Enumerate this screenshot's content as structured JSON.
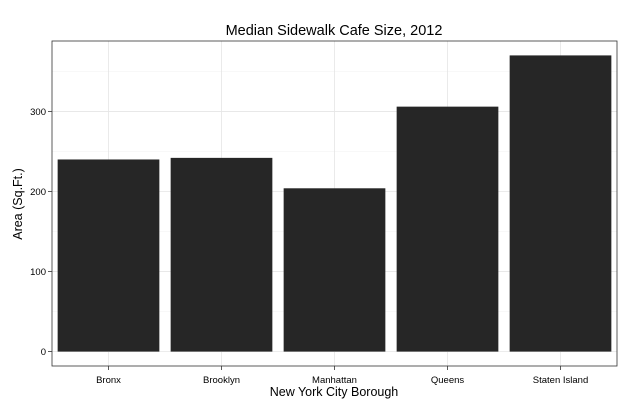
{
  "chart_data": {
    "type": "bar",
    "title": "Median Sidewalk Cafe Size, 2012",
    "xlabel": "New York City Borough",
    "ylabel": "Area (Sq.Ft.)",
    "categories": [
      "Bronx",
      "Brooklyn",
      "Manhattan",
      "Queens",
      "Staten Island"
    ],
    "values": [
      240,
      242,
      204,
      306,
      370
    ],
    "ylim": [
      -18,
      388
    ],
    "yticks": [
      0,
      100,
      200,
      300
    ],
    "grid": true,
    "legend": "none",
    "colors": {
      "bar": "#262626",
      "panel_border": "#333333",
      "grid_major": "#e5e5e5",
      "grid_minor": "#f3f3f3",
      "tick": "#333333"
    }
  }
}
